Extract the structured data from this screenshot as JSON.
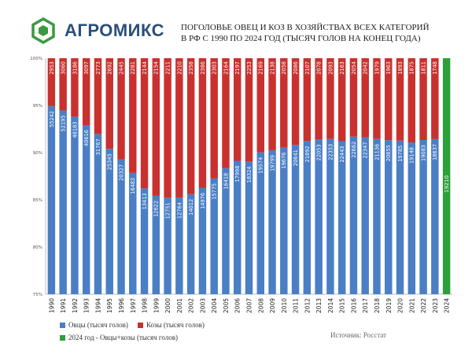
{
  "header": {
    "logo_text": "АГРОМИКС",
    "title_line1": "ПОГОЛОВЬЕ ОВЕЦ И КОЗ В ХОЗЯЙСТВАХ ВСЕХ КАТЕГОРИЙ",
    "title_line2": "В РФ С 1990 ПО 2024 ГОД (ТЫСЯЧ ГОЛОВ НА КОНЕЦ ГОДА)"
  },
  "legend": {
    "sheep": "Овцы (тысяч голов)",
    "goats": "Козы (тысяч голов)",
    "total": "2024 год  - Овцы+козы (тысяч голов)"
  },
  "source": "Источник: Росстат",
  "colors": {
    "sheep": "#4a7fc6",
    "goats": "#c9312f",
    "total": "#2ca03a",
    "logo": "#2a4f7c",
    "logo_mark": "#3a9a3e"
  },
  "chart_data": {
    "type": "bar",
    "stacked": "percent",
    "categories": [
      "1990",
      "1991",
      "1992",
      "1993",
      "1994",
      "1995",
      "1996",
      "1997",
      "1998",
      "1999",
      "2000",
      "2001",
      "2002",
      "2003",
      "2004",
      "2005",
      "2006",
      "2007",
      "2008",
      "2009",
      "2010",
      "2011",
      "2012",
      "2013",
      "2014",
      "2015",
      "2016",
      "2017",
      "2018",
      "2019",
      "2020",
      "2021",
      "2022",
      "2023",
      "2024"
    ],
    "series": [
      {
        "name": "Овцы (тысяч голов)",
        "values": [
          55242,
          52195,
          48183,
          40616,
          31767,
          25345,
          20327,
          16483,
          13413,
          12622,
          12751,
          12764,
          14012,
          14976,
          15775,
          16418,
          17998,
          18324,
          19574,
          19799,
          19676,
          20641,
          21892,
          22053,
          22353,
          22443,
          22662,
          22347,
          21136,
          20655,
          19785,
          19148,
          19083,
          18637,
          null
        ]
      },
      {
        "name": "Козы (тысяч голов)",
        "values": [
          2953,
          3060,
          3186,
          3097,
          2773,
          2692,
          2445,
          2281,
          2144,
          2154,
          2211,
          2210,
          2358,
          2386,
          2303,
          2164,
          2197,
          2253,
          2169,
          2138,
          2058,
          2086,
          2107,
          2078,
          2093,
          2163,
          2054,
          2042,
          1979,
          1963,
          1893,
          1875,
          1811,
          1748,
          1632
        ]
      },
      {
        "name": "2024 год  - Овцы+козы (тысяч голов)",
        "values": [
          null,
          null,
          null,
          null,
          null,
          null,
          null,
          null,
          null,
          null,
          null,
          null,
          null,
          null,
          null,
          null,
          null,
          null,
          null,
          null,
          null,
          null,
          null,
          null,
          null,
          null,
          null,
          null,
          null,
          null,
          null,
          null,
          null,
          null,
          19210
        ]
      }
    ],
    "yticks": [
      "75%",
      "80%",
      "85%",
      "90%",
      "95%",
      "100%"
    ],
    "ylim": [
      75,
      100
    ],
    "grid": false,
    "legend_position": "bottom-left"
  }
}
